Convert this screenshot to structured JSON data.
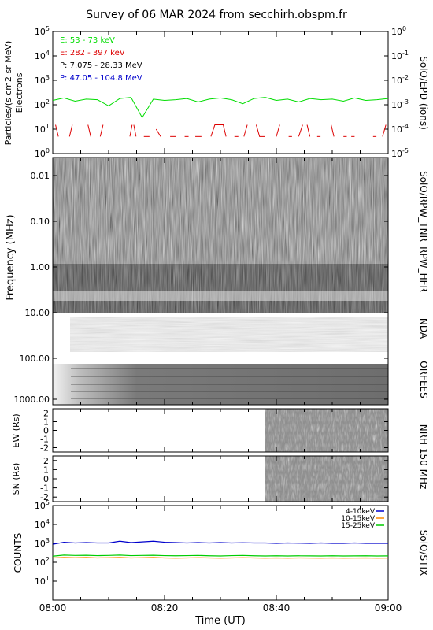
{
  "chart_data": [
    {
      "type": "line",
      "panel": "particles",
      "title": "Survey of 06 MAR 2024 from secchirh.obspm.fr",
      "ylabel_line1": "Particles/(s cm2 sr MeV)",
      "ylabel_line2": "Electrons",
      "right_label": "SolO/EPD (ions)",
      "ylim": [
        1,
        100000
      ],
      "yscale": "log",
      "y_ticks": [
        "10^0",
        "10^1",
        "10^2",
        "10^3",
        "10^4",
        "10^5"
      ],
      "y2lim": [
        1e-05,
        1
      ],
      "y2_ticks": [
        "10^-5",
        "10^-4",
        "10^-3",
        "10^-2",
        "10^-1",
        "10^0"
      ],
      "legend": [
        "E: 53 - 73 keV",
        "E: 282 - 397 keV",
        "P: 7.075 - 28.33 MeV",
        "P: 47.05 - 104.8 MeV"
      ],
      "colors": [
        "#00dd00",
        "#dd0000",
        "#000000",
        "#0000cc"
      ],
      "series": [
        {
          "name": "E: 53 - 73 keV",
          "x": [
            0,
            2,
            4,
            6,
            8,
            10,
            12,
            14,
            16,
            18,
            20,
            22,
            24,
            26,
            28,
            30,
            32,
            34,
            36,
            38,
            40,
            42,
            44,
            46,
            48,
            50,
            52,
            54,
            56,
            58,
            60
          ],
          "values": [
            150,
            190,
            140,
            170,
            160,
            90,
            180,
            200,
            30,
            170,
            150,
            160,
            180,
            130,
            170,
            190,
            160,
            110,
            180,
            200,
            150,
            170,
            130,
            180,
            160,
            170,
            140,
            190,
            150,
            160,
            180
          ]
        },
        {
          "name": "E: 282 - 397 keV",
          "segments": [
            [
              [
                0.5,
                15
              ],
              [
                1.0,
                5
              ]
            ],
            [
              [
                3,
                5
              ],
              [
                3.5,
                15
              ]
            ],
            [
              [
                6.3,
                15
              ],
              [
                6.8,
                5
              ]
            ],
            [
              [
                8.5,
                5
              ],
              [
                9.0,
                15
              ]
            ],
            [
              [
                13.8,
                5
              ],
              [
                14.2,
                15
              ]
            ],
            [
              [
                14.5,
                15
              ],
              [
                14.9,
                5
              ]
            ],
            [
              [
                16.3,
                5
              ],
              [
                17.3,
                5
              ]
            ],
            [
              [
                18.5,
                10
              ],
              [
                19.3,
                5
              ]
            ],
            [
              [
                21,
                5
              ],
              [
                22,
                5
              ]
            ],
            [
              [
                23.6,
                5
              ],
              [
                24.3,
                5
              ]
            ],
            [
              [
                25.5,
                5
              ],
              [
                26.6,
                5
              ]
            ],
            [
              [
                28.3,
                5
              ],
              [
                29.0,
                15
              ],
              [
                30.5,
                15
              ],
              [
                31,
                5
              ]
            ],
            [
              [
                32.5,
                5
              ],
              [
                33.2,
                5
              ]
            ],
            [
              [
                34.2,
                5
              ],
              [
                34.8,
                15
              ]
            ],
            [
              [
                36.4,
                15
              ],
              [
                37.0,
                5
              ],
              [
                38.0,
                5
              ]
            ],
            [
              [
                40,
                5
              ],
              [
                40.6,
                15
              ]
            ],
            [
              [
                42.2,
                5
              ],
              [
                42.8,
                5
              ]
            ],
            [
              [
                44.0,
                5
              ],
              [
                44.7,
                15
              ]
            ],
            [
              [
                45.5,
                15
              ],
              [
                46.0,
                5
              ]
            ],
            [
              [
                47.3,
                5
              ],
              [
                47.9,
                5
              ]
            ],
            [
              [
                49.8,
                15
              ],
              [
                50.3,
                5
              ]
            ],
            [
              [
                52.0,
                5
              ],
              [
                52.6,
                5
              ]
            ],
            [
              [
                53.4,
                5
              ],
              [
                54.0,
                5
              ]
            ],
            [
              [
                57.3,
                5
              ],
              [
                57.9,
                5
              ]
            ],
            [
              [
                59.0,
                5
              ],
              [
                59.6,
                15
              ]
            ]
          ]
        }
      ]
    },
    {
      "type": "heatmap",
      "panel": "radio-spectrogram",
      "ylabel": "Frequency (MHz)",
      "yscale": "log",
      "y_ticks": [
        "0.01",
        "0.10",
        "1.00",
        "10.00",
        "100.00",
        "1000.00"
      ],
      "instruments": [
        "SolO/RPW_TNR",
        "RPW_HFR",
        "NDA",
        "ORFEES"
      ]
    },
    {
      "type": "heatmap",
      "panel": "nrh-ew",
      "ylabel": "EW (Rs)",
      "ylim": [
        -2.5,
        2.5
      ],
      "y_ticks": [
        "-2",
        "-1",
        "0",
        "1",
        "2"
      ],
      "data_start_minute": 38
    },
    {
      "type": "heatmap",
      "panel": "nrh-sn",
      "ylabel": "SN (Rs)",
      "ylim": [
        -2.5,
        2.5
      ],
      "y_ticks": [
        "-2",
        "-1",
        "0",
        "1",
        "2"
      ],
      "data_start_minute": 38,
      "right_label": "NRH 150 MHz"
    },
    {
      "type": "line",
      "panel": "stix",
      "ylabel": "COUNTS",
      "right_label": "SolO/STIX",
      "yscale": "log",
      "ylim": [
        1,
        100000
      ],
      "y_ticks": [
        "10^1",
        "10^2",
        "10^3",
        "10^4",
        "10^5"
      ],
      "xlabel": "Time (UT)",
      "x_ticks": [
        "08:00",
        "08:20",
        "08:40",
        "09:00"
      ],
      "xlim_minutes": [
        0,
        60
      ],
      "colors": [
        "#0000cc",
        "#ff8800",
        "#00cc00"
      ],
      "series": [
        {
          "name": "4-10keV",
          "x": [
            0,
            2,
            4,
            6,
            8,
            10,
            12,
            14,
            16,
            18,
            20,
            22,
            24,
            26,
            28,
            30,
            32,
            34,
            36,
            38,
            40,
            42,
            44,
            46,
            48,
            50,
            52,
            54,
            56,
            58,
            60
          ],
          "values": [
            900,
            1150,
            1050,
            1100,
            1050,
            1050,
            1300,
            1100,
            1200,
            1300,
            1150,
            1100,
            1050,
            1100,
            1050,
            1100,
            1050,
            1080,
            1050,
            1050,
            1000,
            1050,
            1020,
            1000,
            1050,
            1000,
            1000,
            1050,
            1000,
            1000,
            1000
          ]
        },
        {
          "name": "10-15keV",
          "x": [
            0,
            2,
            4,
            6,
            8,
            10,
            12,
            14,
            16,
            18,
            20,
            22,
            24,
            26,
            28,
            30,
            32,
            34,
            36,
            38,
            40,
            42,
            44,
            46,
            48,
            50,
            52,
            54,
            56,
            58,
            60
          ],
          "values": [
            170,
            180,
            175,
            180,
            170,
            175,
            180,
            170,
            175,
            180,
            170,
            165,
            170,
            175,
            170,
            165,
            170,
            175,
            170,
            165,
            170,
            165,
            170,
            168,
            165,
            170,
            165,
            168,
            170,
            165,
            168
          ]
        },
        {
          "name": "15-25keV",
          "x": [
            0,
            2,
            4,
            6,
            8,
            10,
            12,
            14,
            16,
            18,
            20,
            22,
            24,
            26,
            28,
            30,
            32,
            34,
            36,
            38,
            40,
            42,
            44,
            46,
            48,
            50,
            52,
            54,
            56,
            58,
            60
          ],
          "values": [
            210,
            240,
            230,
            235,
            225,
            230,
            240,
            225,
            230,
            235,
            225,
            220,
            225,
            230,
            220,
            215,
            225,
            230,
            220,
            215,
            220,
            215,
            220,
            218,
            215,
            220,
            215,
            218,
            220,
            215,
            218
          ]
        }
      ]
    }
  ]
}
